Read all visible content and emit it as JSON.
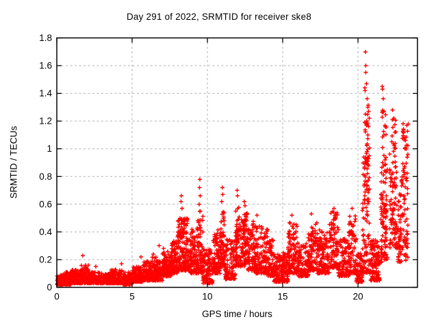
{
  "chart_data": {
    "type": "scatter",
    "title": "Day 291 of 2022, SRMTID for receiver ske8",
    "xlabel": "GPS time / hours",
    "ylabel": "SRMTID / TECUs",
    "xlim": [
      0,
      23.95
    ],
    "ylim": [
      0,
      1.8
    ],
    "xticks": [
      0,
      5,
      10,
      15,
      20
    ],
    "yticks": [
      0,
      0.2,
      0.4,
      0.6,
      0.8,
      1,
      1.2,
      1.4,
      1.6,
      1.8
    ],
    "grid": true,
    "legend_visible": false,
    "marker": "plus",
    "marker_color": "#ff0000",
    "grid_color": "#b0b0b0",
    "border_color": "#000000",
    "background_color": "#ffffff",
    "series_name": "SRMTID",
    "density_segments": [
      [
        0.0,
        0.5,
        100,
        0.02,
        0.1,
        1.8
      ],
      [
        0.5,
        1.0,
        100,
        0.02,
        0.11,
        1.8
      ],
      [
        1.0,
        1.6,
        110,
        0.03,
        0.13,
        1.8
      ],
      [
        1.6,
        2.1,
        90,
        0.03,
        0.16,
        1.8
      ],
      [
        2.1,
        3.0,
        160,
        0.03,
        0.11,
        1.8
      ],
      [
        3.0,
        3.6,
        110,
        0.03,
        0.1,
        1.8
      ],
      [
        3.6,
        4.4,
        140,
        0.03,
        0.13,
        1.8
      ],
      [
        4.4,
        5.0,
        110,
        0.02,
        0.11,
        1.8
      ],
      [
        5.0,
        5.7,
        120,
        0.04,
        0.15,
        1.8
      ],
      [
        5.7,
        6.3,
        100,
        0.05,
        0.19,
        1.8
      ],
      [
        6.3,
        7.0,
        120,
        0.05,
        0.22,
        1.8
      ],
      [
        7.0,
        7.6,
        110,
        0.08,
        0.26,
        1.8
      ],
      [
        7.6,
        8.0,
        80,
        0.1,
        0.34,
        1.6
      ],
      [
        8.0,
        8.8,
        170,
        0.12,
        0.5,
        1.4
      ],
      [
        8.8,
        9.3,
        90,
        0.1,
        0.42,
        1.6
      ],
      [
        9.3,
        9.7,
        70,
        0.1,
        0.55,
        1.5
      ],
      [
        9.7,
        10.35,
        110,
        0.03,
        0.28,
        1.8
      ],
      [
        10.35,
        10.85,
        90,
        0.1,
        0.42,
        1.6
      ],
      [
        10.85,
        11.15,
        60,
        0.15,
        0.55,
        1.5
      ],
      [
        11.15,
        11.85,
        120,
        0.06,
        0.35,
        1.8
      ],
      [
        11.85,
        12.15,
        70,
        0.15,
        0.58,
        1.5
      ],
      [
        12.15,
        12.7,
        100,
        0.15,
        0.55,
        1.5
      ],
      [
        12.7,
        13.2,
        90,
        0.12,
        0.48,
        1.6
      ],
      [
        13.2,
        14.0,
        140,
        0.1,
        0.45,
        1.7
      ],
      [
        14.0,
        14.4,
        70,
        0.08,
        0.35,
        1.8
      ],
      [
        14.4,
        15.35,
        150,
        0.04,
        0.25,
        1.8
      ],
      [
        15.35,
        16.0,
        110,
        0.1,
        0.48,
        1.6
      ],
      [
        16.0,
        16.7,
        110,
        0.08,
        0.32,
        1.8
      ],
      [
        16.7,
        17.3,
        100,
        0.12,
        0.5,
        1.6
      ],
      [
        17.3,
        18.1,
        130,
        0.1,
        0.42,
        1.7
      ],
      [
        18.1,
        18.7,
        100,
        0.14,
        0.55,
        1.6
      ],
      [
        18.7,
        19.4,
        110,
        0.08,
        0.35,
        1.8
      ],
      [
        19.4,
        19.9,
        80,
        0.1,
        0.55,
        1.7
      ],
      [
        19.9,
        20.3,
        80,
        0.04,
        0.25,
        1.8
      ],
      [
        20.3,
        20.75,
        100,
        0.1,
        0.95,
        1.4
      ],
      [
        20.45,
        20.78,
        26,
        0.9,
        1.32,
        1.0
      ],
      [
        20.78,
        21.45,
        120,
        0.05,
        0.35,
        1.7
      ],
      [
        21.5,
        21.95,
        95,
        0.18,
        0.98,
        1.5
      ],
      [
        21.6,
        21.9,
        14,
        0.95,
        1.35,
        1.0
      ],
      [
        22.1,
        22.6,
        90,
        0.28,
        0.98,
        1.5
      ],
      [
        22.25,
        22.55,
        14,
        0.95,
        1.25,
        1.0
      ],
      [
        22.65,
        23.33,
        95,
        0.18,
        0.8,
        1.5
      ],
      [
        22.95,
        23.33,
        30,
        0.78,
        1.18,
        1.0
      ]
    ],
    "spike_points": [
      [
        1.72,
        0.23
      ],
      [
        2.6,
        0.15
      ],
      [
        4.3,
        0.17
      ],
      [
        5.6,
        0.22
      ],
      [
        6.4,
        0.24
      ],
      [
        6.8,
        0.3
      ],
      [
        7.1,
        0.28
      ],
      [
        8.25,
        0.62
      ],
      [
        8.28,
        0.66
      ],
      [
        8.32,
        0.57
      ],
      [
        9.45,
        0.6
      ],
      [
        9.48,
        0.72
      ],
      [
        9.5,
        0.78
      ],
      [
        9.53,
        0.66
      ],
      [
        10.95,
        0.62
      ],
      [
        11.0,
        0.72
      ],
      [
        11.02,
        0.67
      ],
      [
        11.97,
        0.7
      ],
      [
        12.0,
        0.66
      ],
      [
        12.45,
        0.62
      ],
      [
        12.5,
        0.59
      ],
      [
        13.3,
        0.52
      ],
      [
        15.6,
        0.52
      ],
      [
        16.9,
        0.53
      ],
      [
        18.4,
        0.57
      ],
      [
        19.6,
        0.57
      ],
      [
        20.5,
        1.7
      ],
      [
        20.52,
        1.6
      ],
      [
        20.53,
        1.55
      ],
      [
        20.45,
        1.44
      ],
      [
        20.48,
        1.42
      ],
      [
        20.56,
        1.47
      ],
      [
        20.6,
        1.36
      ],
      [
        20.65,
        1.3
      ],
      [
        20.7,
        1.27
      ],
      [
        20.75,
        1.22
      ],
      [
        21.6,
        1.45
      ],
      [
        21.64,
        1.43
      ],
      [
        21.68,
        1.36
      ],
      [
        21.72,
        1.27
      ],
      [
        21.8,
        1.17
      ],
      [
        22.3,
        1.28
      ],
      [
        22.38,
        1.22
      ],
      [
        22.45,
        1.12
      ],
      [
        23.0,
        1.18
      ],
      [
        23.05,
        1.12
      ],
      [
        23.15,
        1.06
      ],
      [
        23.25,
        1.17
      ]
    ]
  }
}
